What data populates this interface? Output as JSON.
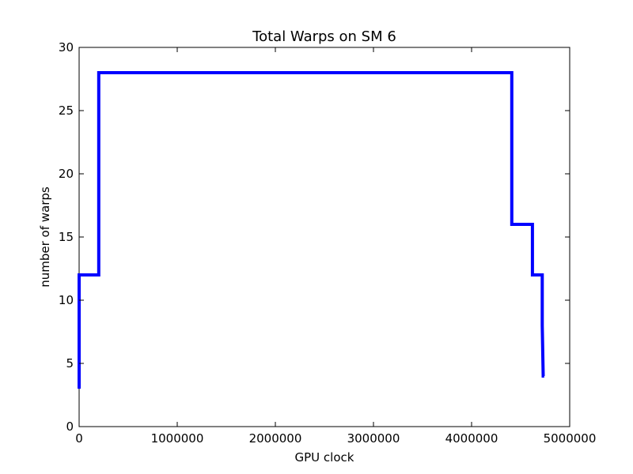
{
  "chart_data": {
    "type": "line",
    "title": "Total Warps on SM 6",
    "xlabel": "GPU clock",
    "ylabel": "number of warps",
    "xlim": [
      0,
      5000000
    ],
    "ylim": [
      0,
      30
    ],
    "x_ticks": [
      0,
      1000000,
      2000000,
      3000000,
      4000000,
      5000000
    ],
    "x_tick_labels": [
      "0",
      "1000000",
      "2000000",
      "3000000",
      "4000000",
      "5000000"
    ],
    "y_ticks": [
      0,
      5,
      10,
      15,
      20,
      25,
      30
    ],
    "y_tick_labels": [
      "0",
      "5",
      "10",
      "15",
      "20",
      "25",
      "30"
    ],
    "grid": false,
    "legend": "none",
    "series": [
      {
        "color": "#0000ff",
        "x": [
          0,
          0,
          200000,
          200000,
          4400000,
          4410000,
          4410000,
          4620000,
          4620000,
          4720000,
          4720000,
          4730000,
          4740000
        ],
        "y": [
          3,
          12,
          12,
          28,
          28,
          28,
          16,
          16,
          12,
          12,
          8,
          4,
          4
        ]
      }
    ]
  }
}
